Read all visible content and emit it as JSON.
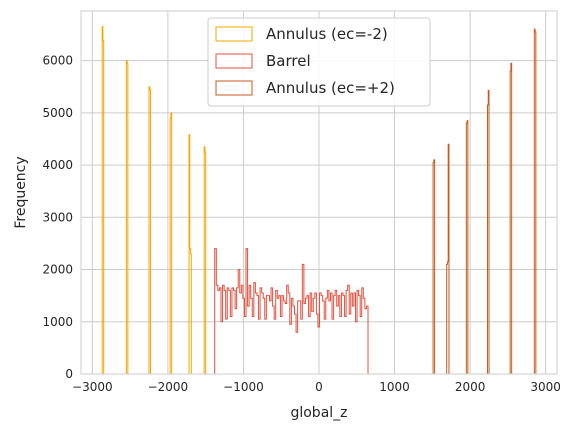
{
  "chart_data": {
    "type": "histogram",
    "xlabel": "global_z",
    "ylabel": "Frequency",
    "xlim": [
      -3150,
      3150
    ],
    "ylim": [
      0,
      6950
    ],
    "xticks": [
      -3000,
      -2000,
      -1000,
      0,
      1000,
      2000,
      3000
    ],
    "xtick_labels": [
      "−3000",
      "−2000",
      "−1000",
      "0",
      "1000",
      "2000",
      "3000"
    ],
    "yticks": [
      0,
      1000,
      2000,
      3000,
      4000,
      5000,
      6000
    ],
    "ytick_labels": [
      "0",
      "1000",
      "2000",
      "3000",
      "4000",
      "5000",
      "6000"
    ],
    "grid": true,
    "legend_position": "top-center",
    "series": [
      {
        "name": "Annulus (ec=-2)",
        "color": "#f5a700",
        "bins": [
          {
            "x0": -2870,
            "x1": -2860,
            "y": 6650
          },
          {
            "x0": -2860,
            "x1": -2850,
            "y": 6380
          },
          {
            "x0": -2550,
            "x1": -2540,
            "y": 6000
          },
          {
            "x0": -2540,
            "x1": -2530,
            "y": 5950
          },
          {
            "x0": -2250,
            "x1": -2240,
            "y": 5500
          },
          {
            "x0": -2240,
            "x1": -2230,
            "y": 5450
          },
          {
            "x0": -1970,
            "x1": -1960,
            "y": 4900
          },
          {
            "x0": -1960,
            "x1": -1950,
            "y": 5000
          },
          {
            "x0": -1720,
            "x1": -1710,
            "y": 4580
          },
          {
            "x0": -1710,
            "x1": -1700,
            "y": 2400
          },
          {
            "x0": -1700,
            "x1": -1690,
            "y": 2300
          },
          {
            "x0": -1520,
            "x1": -1510,
            "y": 4350
          },
          {
            "x0": -1510,
            "x1": -1500,
            "y": 4250
          }
        ]
      },
      {
        "name": "Barrel",
        "color": "#e0523f",
        "bin_start": -1380,
        "bin_width": 20.7,
        "counts": [
          2400,
          1700,
          1600,
          1650,
          1000,
          1700,
          1600,
          1050,
          1650,
          1600,
          1100,
          1650,
          1600,
          1250,
          1650,
          2000,
          1550,
          1700,
          1450,
          1100,
          2400,
          1300,
          1700,
          1450,
          1100,
          1750,
          1550,
          1500,
          1050,
          1650,
          1550,
          1450,
          1050,
          1500,
          1500,
          1400,
          1650,
          1300,
          1050,
          1600,
          1450,
          1500,
          1100,
          1500,
          1400,
          1350,
          1700,
          1550,
          950,
          1450,
          1300,
          1150,
          800,
          1400,
          1400,
          1050,
          2100,
          1350,
          1450,
          1500,
          1100,
          1550,
          1200,
          1450,
          1550,
          1150,
          900,
          1550,
          1500,
          1400,
          1050,
          1450,
          1600,
          1400,
          1550,
          1050,
          1500,
          1600,
          1300,
          1500,
          1100,
          1550,
          1500,
          1100,
          1600,
          1700,
          1150,
          1550,
          1300,
          1550,
          1000,
          1600,
          1500,
          1100,
          1650,
          1450,
          1250,
          1300
        ]
      },
      {
        "name": "Annulus (ec=+2)",
        "color": "#c85a1c",
        "bins": [
          {
            "x0": 1510,
            "x1": 1520,
            "y": 4050
          },
          {
            "x0": 1520,
            "x1": 1530,
            "y": 4100
          },
          {
            "x0": 1690,
            "x1": 1700,
            "y": 2100
          },
          {
            "x0": 1700,
            "x1": 1710,
            "y": 2150
          },
          {
            "x0": 1710,
            "x1": 1720,
            "y": 4400
          },
          {
            "x0": 1950,
            "x1": 1960,
            "y": 4800
          },
          {
            "x0": 1960,
            "x1": 1970,
            "y": 4850
          },
          {
            "x0": 2230,
            "x1": 2240,
            "y": 5150
          },
          {
            "x0": 2240,
            "x1": 2250,
            "y": 5430
          },
          {
            "x0": 2530,
            "x1": 2540,
            "y": 5800
          },
          {
            "x0": 2540,
            "x1": 2550,
            "y": 5950
          },
          {
            "x0": 2850,
            "x1": 2860,
            "y": 6600
          },
          {
            "x0": 2860,
            "x1": 2870,
            "y": 6550
          }
        ]
      }
    ]
  }
}
